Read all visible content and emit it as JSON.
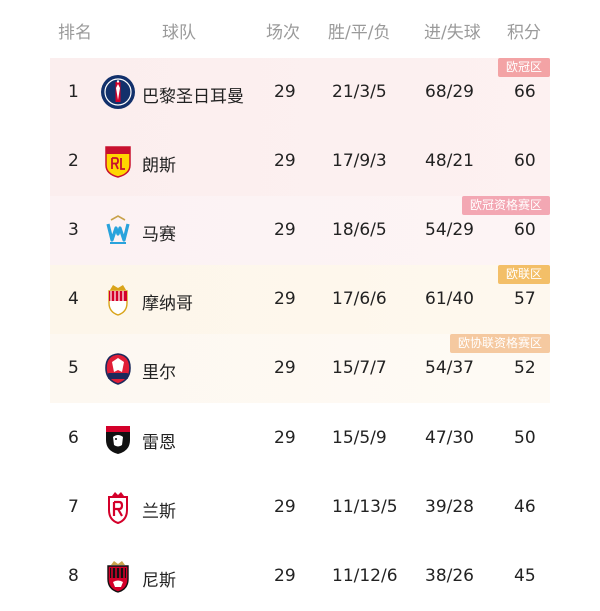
{
  "header": {
    "rank": "排名",
    "team": "球队",
    "played": "场次",
    "record": "胜/平/负",
    "goals": "进/失球",
    "points": "积分"
  },
  "zones": {
    "ucl": "欧冠区",
    "ucl_qualifying": "欧冠资格赛区",
    "uel": "欧联区",
    "uecl_qualifying": "欧协联资格赛区"
  },
  "teams": [
    {
      "rank": "1",
      "name": "巴黎圣日耳曼",
      "played": "29",
      "record": "21/3/5",
      "goals": "68/29",
      "points": "66",
      "crest_icon": "psg-crest-icon"
    },
    {
      "rank": "2",
      "name": "朗斯",
      "played": "29",
      "record": "17/9/3",
      "goals": "48/21",
      "points": "60",
      "crest_icon": "lens-crest-icon"
    },
    {
      "rank": "3",
      "name": "马赛",
      "played": "29",
      "record": "18/6/5",
      "goals": "54/29",
      "points": "60",
      "crest_icon": "marseille-crest-icon"
    },
    {
      "rank": "4",
      "name": "摩纳哥",
      "played": "29",
      "record": "17/6/6",
      "goals": "61/40",
      "points": "57",
      "crest_icon": "monaco-crest-icon"
    },
    {
      "rank": "5",
      "name": "里尔",
      "played": "29",
      "record": "15/7/7",
      "goals": "54/37",
      "points": "52",
      "crest_icon": "lille-crest-icon"
    },
    {
      "rank": "6",
      "name": "雷恩",
      "played": "29",
      "record": "15/5/9",
      "goals": "47/30",
      "points": "50",
      "crest_icon": "rennes-crest-icon"
    },
    {
      "rank": "7",
      "name": "兰斯",
      "played": "29",
      "record": "11/13/5",
      "goals": "39/28",
      "points": "46",
      "crest_icon": "reims-crest-icon"
    },
    {
      "rank": "8",
      "name": "尼斯",
      "played": "29",
      "record": "11/12/6",
      "goals": "38/26",
      "points": "45",
      "crest_icon": "nice-crest-icon"
    }
  ],
  "colors": {
    "ucl_badge": "#f3a3a5",
    "ucl_qualifying_badge": "#f3a7b3",
    "uel_badge": "#f3bf68",
    "uecl_qualifying_badge": "#f5c9a0",
    "header_text": "#9a9a9a"
  }
}
